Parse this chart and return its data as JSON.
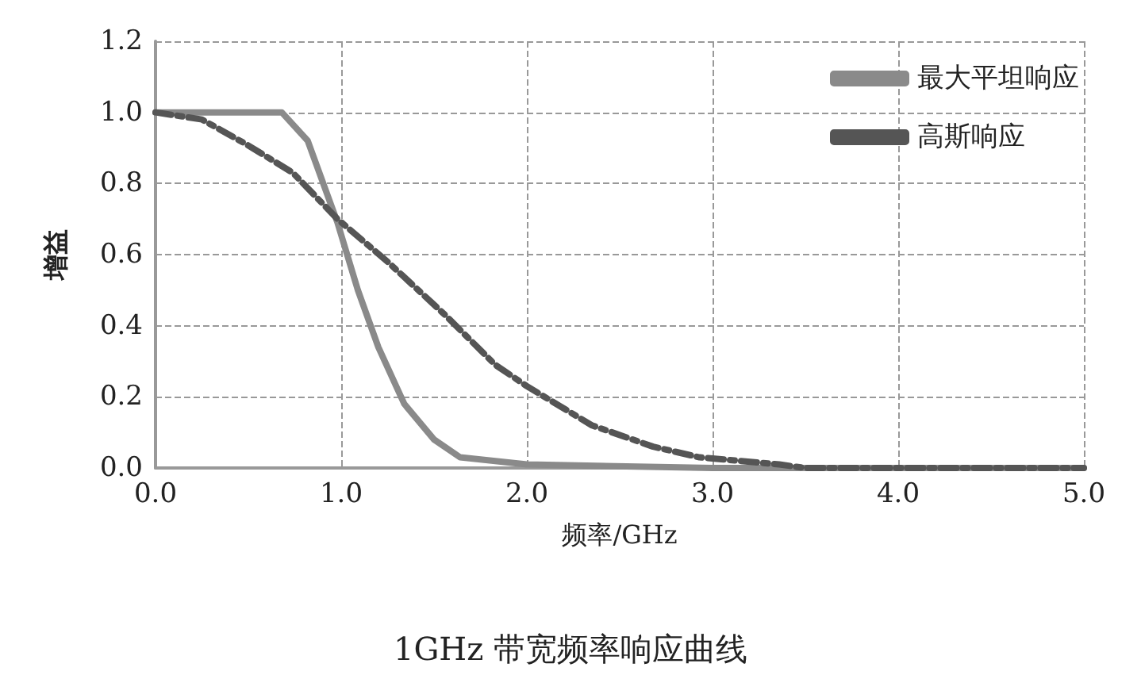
{
  "chart_data": {
    "type": "line",
    "title": "1GHz 带宽频率响应曲线",
    "xlabel": "频率/GHz",
    "ylabel": "增益",
    "xlim": [
      0,
      5
    ],
    "xticks": [
      {
        "value": 0,
        "label": "0.0"
      },
      {
        "value": 1,
        "label": "1.0"
      },
      {
        "value": 2,
        "label": "2.0"
      },
      {
        "value": 3,
        "label": "3.0"
      },
      {
        "value": 4,
        "label": "4.0"
      },
      {
        "value": 5,
        "label": "5.0"
      }
    ],
    "ylim": [
      0,
      1.2
    ],
    "yticks": [
      {
        "value": 0,
        "label": "0.0"
      },
      {
        "value": 0.2,
        "label": "0.2"
      },
      {
        "value": 0.4,
        "label": "0.4"
      },
      {
        "value": 0.6,
        "label": "0.6"
      },
      {
        "value": 0.8,
        "label": "0.8"
      },
      {
        "value": 1,
        "label": "1.0"
      },
      {
        "value": 1.2,
        "label": "1.2"
      }
    ],
    "grid": true,
    "legend": "top right",
    "marker": "none",
    "series": [
      {
        "name": "最大平坦响应",
        "color": "#8a8a8a",
        "line_style": "solid",
        "x": [
          0,
          0.68,
          0.82,
          0.98,
          1.09,
          1.2,
          1.34,
          1.5,
          1.64,
          2.0,
          3.0,
          5.0
        ],
        "values": [
          1.0,
          1.0,
          0.92,
          0.69,
          0.5,
          0.34,
          0.18,
          0.08,
          0.03,
          0.01,
          0.0,
          0.0
        ]
      },
      {
        "name": "高斯响应",
        "color": "#555555",
        "line_style": "dashed",
        "x": [
          0,
          0.25,
          0.49,
          0.74,
          0.98,
          1.25,
          1.56,
          1.83,
          2.0,
          2.35,
          2.68,
          2.93,
          3.36,
          3.5,
          5.0
        ],
        "values": [
          1.0,
          0.98,
          0.91,
          0.83,
          0.7,
          0.58,
          0.43,
          0.29,
          0.23,
          0.12,
          0.06,
          0.03,
          0.01,
          0.0,
          0.0
        ]
      }
    ]
  }
}
